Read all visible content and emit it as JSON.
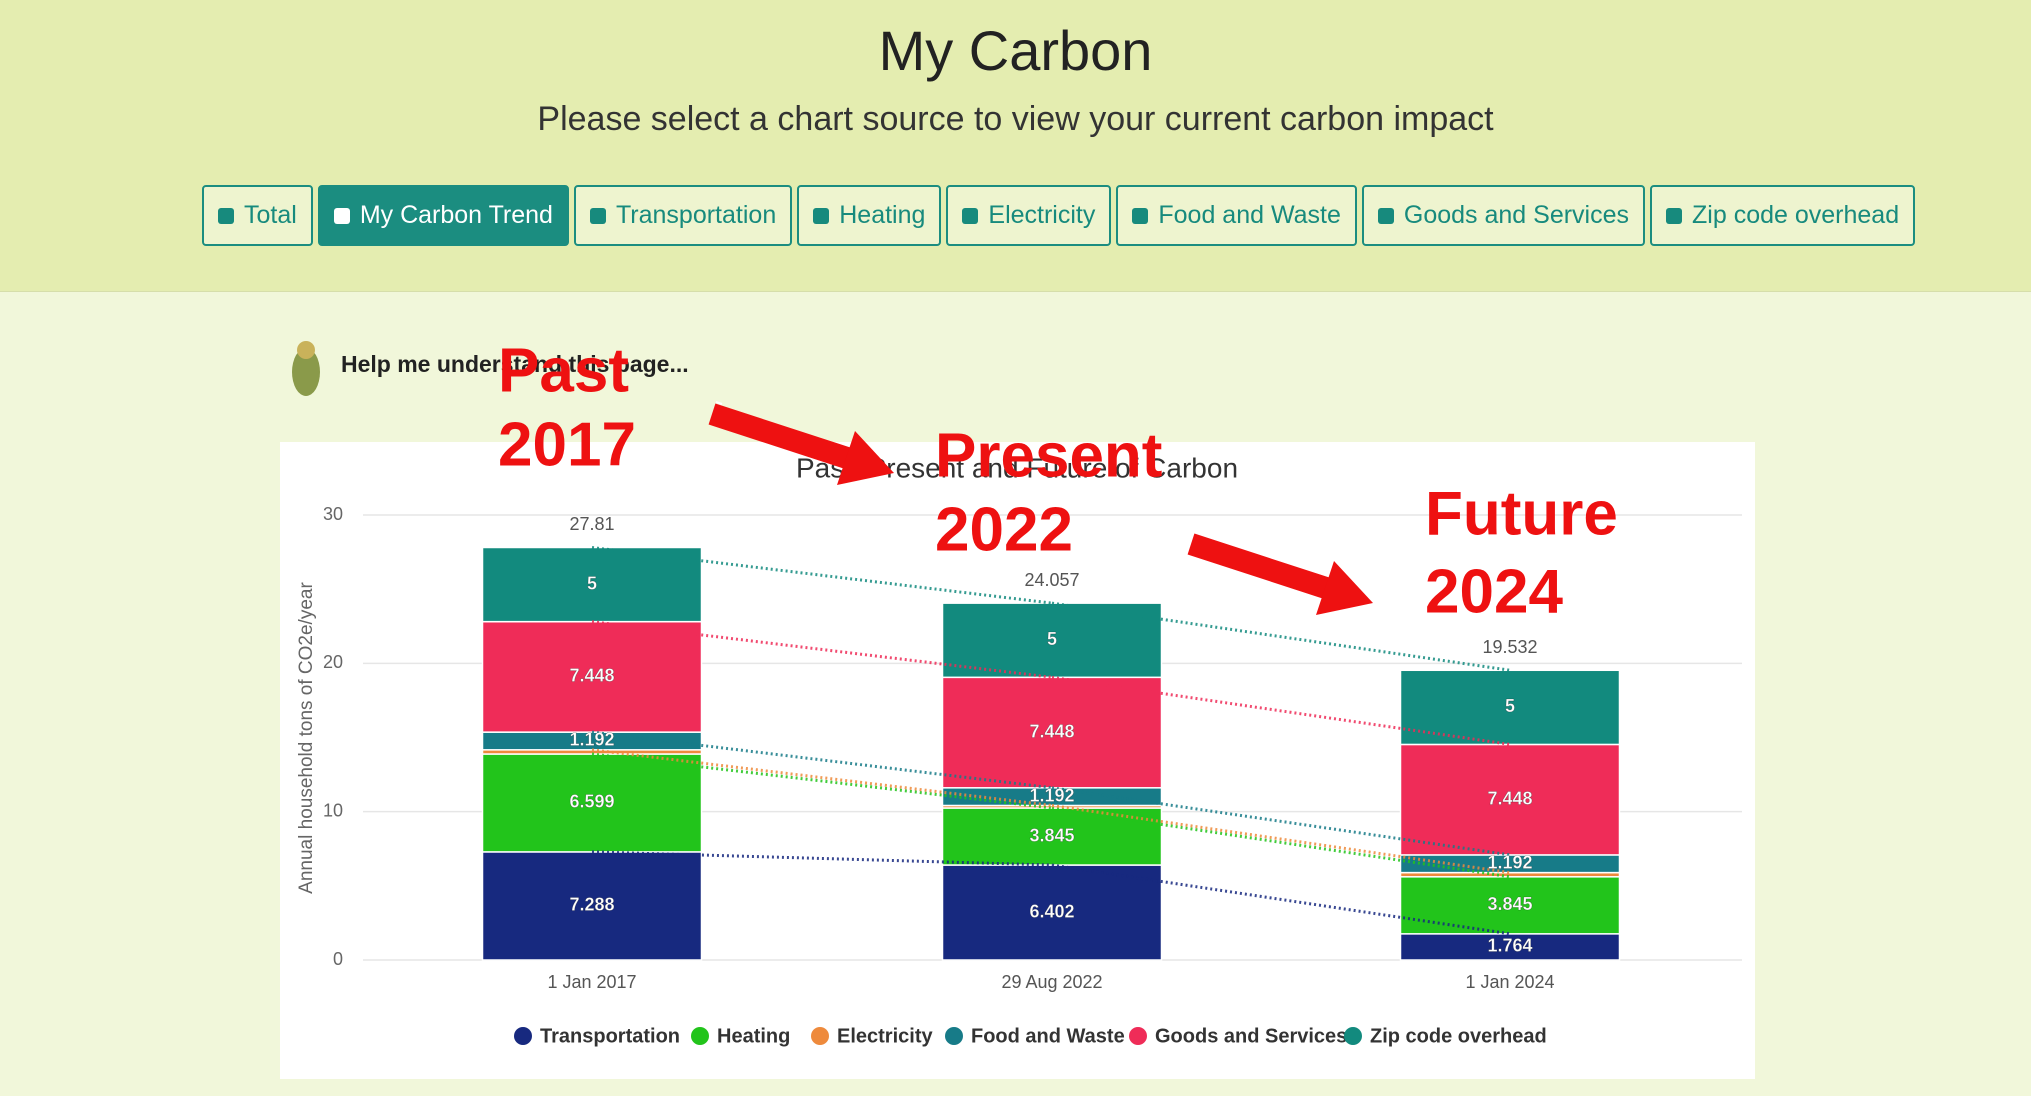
{
  "header": {
    "title": "My Carbon",
    "subtitle": "Please select a chart source to view your current carbon impact",
    "buttons": [
      "Total",
      "My Carbon Trend",
      "Transportation",
      "Heating",
      "Electricity",
      "Food and Waste",
      "Goods and Services",
      "Zip code overhead"
    ],
    "active": 1
  },
  "help": "Help me understand this page...",
  "annotations": [
    {
      "label": "Past",
      "year": "2017"
    },
    {
      "label": "Present",
      "year": "2022"
    },
    {
      "label": "Future",
      "year": "2024"
    }
  ],
  "chart_data": {
    "type": "stacked_bar",
    "title": "Past, Present and Future of Carbon",
    "ylabel": "Annual household tons of CO2e/year",
    "categories": [
      "1 Jan 2017",
      "29 Aug 2022",
      "1 Jan 2024"
    ],
    "series": [
      {
        "name": "Transportation",
        "color": "#17297f",
        "values": [
          7.288,
          6.402,
          1.764
        ]
      },
      {
        "name": "Heating",
        "color": "#22c41b",
        "values": [
          6.599,
          3.845,
          3.845
        ]
      },
      {
        "name": "Electricity",
        "color": "#ee8a3c",
        "values": [
          0.283,
          0.17,
          0.283
        ]
      },
      {
        "name": "Food and Waste",
        "color": "#177b88",
        "values": [
          1.192,
          1.192,
          1.192
        ]
      },
      {
        "name": "Goods and Services",
        "color": "#ef2c58",
        "values": [
          7.448,
          7.448,
          7.448
        ]
      },
      {
        "name": "Zip code overhead",
        "color": "#128a7e",
        "values": [
          5,
          5,
          5
        ]
      }
    ],
    "totals": [
      27.81,
      24.057,
      19.532
    ],
    "ylim": [
      0,
      30
    ],
    "yticks": [
      0,
      10,
      20,
      30
    ],
    "grid": true
  }
}
